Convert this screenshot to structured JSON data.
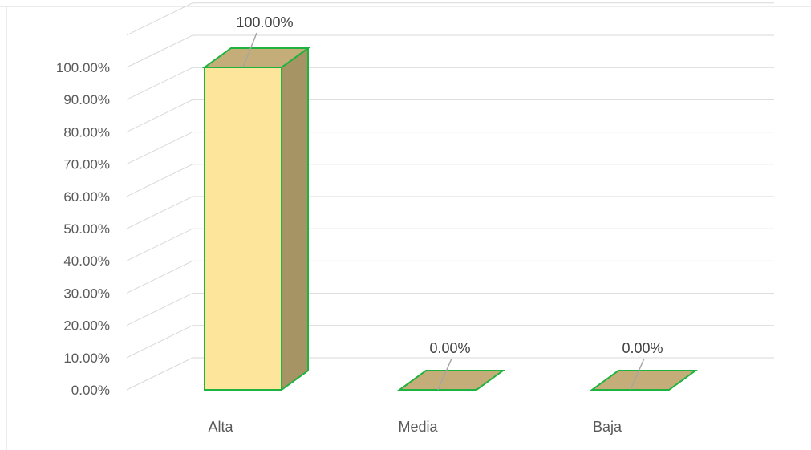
{
  "chart_data": {
    "type": "bar",
    "style": "3d-column",
    "categories": [
      "Alta",
      "Media",
      "Baja"
    ],
    "values": [
      100,
      0,
      0
    ],
    "data_labels": [
      "100.00%",
      "0.00%",
      "0.00%"
    ],
    "yticks": [
      "0.00%",
      "10.00%",
      "20.00%",
      "30.00%",
      "40.00%",
      "50.00%",
      "60.00%",
      "70.00%",
      "80.00%",
      "90.00%",
      "100.00%"
    ],
    "ylim": [
      0,
      110
    ],
    "grid": true,
    "legend": "none",
    "colors": {
      "bar_front": "#FDE59B",
      "bar_side": "#A69465",
      "bar_top": "#C4AD78",
      "bar_edge": "#1DB33E",
      "gridline": "#D9D9D9",
      "leader_line": "#A6A6A6",
      "frame": "#D9D9D9"
    }
  }
}
